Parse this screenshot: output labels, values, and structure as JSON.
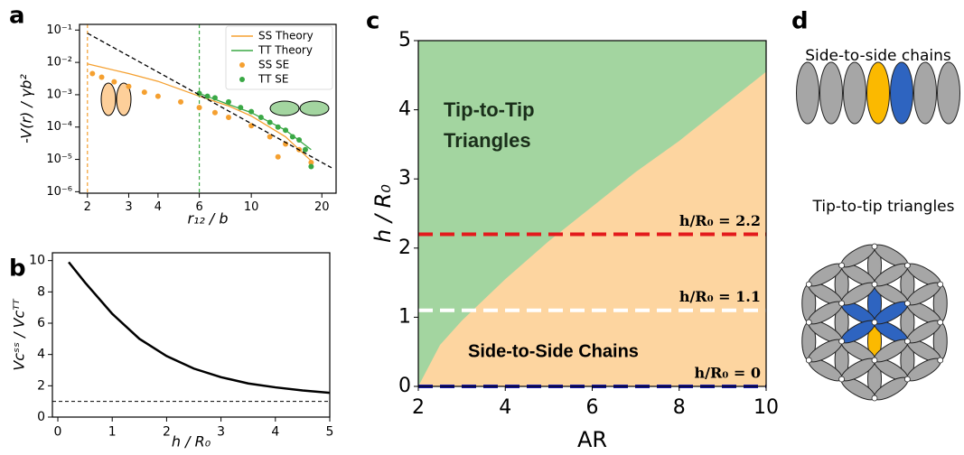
{
  "chart_data": [
    {
      "panel_label": "a",
      "type": "line",
      "xlabel": "r₁₂ / b",
      "ylabel": "-V(r) / γb²",
      "xlog": true,
      "ylog": true,
      "xlim": [
        1.85,
        23
      ],
      "ylim": [
        9e-07,
        0.15
      ],
      "xticks": [
        2,
        3,
        4,
        6,
        10,
        20
      ],
      "yticks": [
        {
          "value": 1e-06,
          "label": "10⁻⁶"
        },
        {
          "value": 1e-05,
          "label": "10⁻⁵"
        },
        {
          "value": 0.0001,
          "label": "10⁻⁴"
        },
        {
          "value": 0.001,
          "label": "10⁻³"
        },
        {
          "value": 0.01,
          "label": "10⁻²"
        },
        {
          "value": 0.1,
          "label": "10⁻¹"
        }
      ],
      "legend": "upper right",
      "series": [
        {
          "name": "SS Theory",
          "color": "#f5a030",
          "style": "line",
          "x": [
            2,
            3,
            4,
            6,
            8,
            10,
            14,
            18
          ],
          "values": [
            0.009,
            0.0045,
            0.0026,
            0.0009,
            0.00045,
            0.00022,
            5e-05,
            9e-06
          ]
        },
        {
          "name": "TT Theory",
          "color": "#3aa845",
          "style": "line",
          "x": [
            6,
            8,
            10,
            14,
            18
          ],
          "values": [
            0.0011,
            0.0005,
            0.00028,
            8e-05,
            2e-05
          ]
        },
        {
          "name": "SS SE",
          "color": "#f5a030",
          "style": "points",
          "x": [
            2.1,
            2.3,
            2.6,
            3,
            3.5,
            4,
            5,
            6,
            7,
            8,
            10,
            12,
            13,
            14,
            16,
            18
          ],
          "values": [
            0.0045,
            0.0035,
            0.0025,
            0.0018,
            0.0012,
            0.0009,
            0.0006,
            0.0004,
            0.00028,
            0.0002,
            0.00011,
            5e-05,
            1.2e-05,
            3e-05,
            2e-05,
            8e-06
          ]
        },
        {
          "name": "TT SE",
          "color": "#3aa845",
          "style": "points",
          "x": [
            6,
            6.5,
            7,
            8,
            9,
            10,
            11,
            12,
            13,
            14,
            15,
            16,
            17,
            18
          ],
          "values": [
            0.0011,
            0.0009,
            0.0008,
            0.0006,
            0.0004,
            0.0003,
            0.0002,
            0.00014,
            0.0001,
            8e-05,
            5e-05,
            4e-05,
            2e-05,
            6e-06
          ]
        },
        {
          "color": "#000000",
          "style": "dashed",
          "x": [
            2,
            22
          ],
          "values": [
            0.08,
            5.5e-06
          ]
        }
      ],
      "vlines": [
        {
          "value": 2,
          "color": "#f5a030"
        },
        {
          "value": 6,
          "color": "#3aa845"
        }
      ]
    },
    {
      "panel_label": "b",
      "type": "line",
      "xlabel": "h / R₀",
      "ylabel": "Vcˢˢ / Vcᵀᵀ",
      "xlim": [
        -0.1,
        5
      ],
      "ylim": [
        0,
        10.5
      ],
      "xticks": [
        0,
        1,
        2,
        3,
        4,
        5
      ],
      "yticks": [
        0,
        2,
        4,
        6,
        8,
        10
      ],
      "series": [
        {
          "color": "#000000",
          "style": "line",
          "x": [
            0.2,
            0.5,
            1,
            1.5,
            2,
            2.5,
            3,
            3.5,
            4,
            4.5,
            5
          ],
          "values": [
            9.9,
            8.6,
            6.6,
            5.0,
            3.9,
            3.1,
            2.55,
            2.15,
            1.9,
            1.7,
            1.55
          ]
        }
      ],
      "hlines": [
        {
          "value": 1,
          "color": "#000000"
        }
      ]
    },
    {
      "panel_label": "c",
      "type": "area",
      "xlabel": "AR",
      "ylabel": "h / R₀",
      "xlim": [
        2,
        10
      ],
      "ylim": [
        0,
        5
      ],
      "xticks": [
        2,
        4,
        6,
        8,
        10
      ],
      "yticks": [
        0,
        1,
        2,
        3,
        4,
        5
      ],
      "upper_region": {
        "name": "Tip-to-Tip Triangles",
        "color": "#a3d5a0"
      },
      "series": [
        {
          "name": "Side-to-Side Chains",
          "color": "#fdd5a0",
          "x": [
            2,
            2.5,
            3,
            4,
            5,
            6,
            7,
            8,
            9,
            10
          ],
          "values": [
            0,
            0.6,
            0.95,
            1.55,
            2.1,
            2.6,
            3.1,
            3.55,
            4.05,
            4.55
          ]
        }
      ],
      "hlines": [
        {
          "value": 2.2,
          "label": "h/R₀ = 2.2",
          "color": "#e31a1c"
        },
        {
          "value": 1.1,
          "label": "h/R₀ = 1.1",
          "color": "#ffffff"
        },
        {
          "value": 0,
          "label": "h/R₀ = 0",
          "color": "#1a1aa8"
        }
      ]
    }
  ],
  "diagram": {
    "panel_label": "d",
    "top_title": "Side-to-side chains",
    "bottom_title": "Tip-to-tip triangles"
  }
}
